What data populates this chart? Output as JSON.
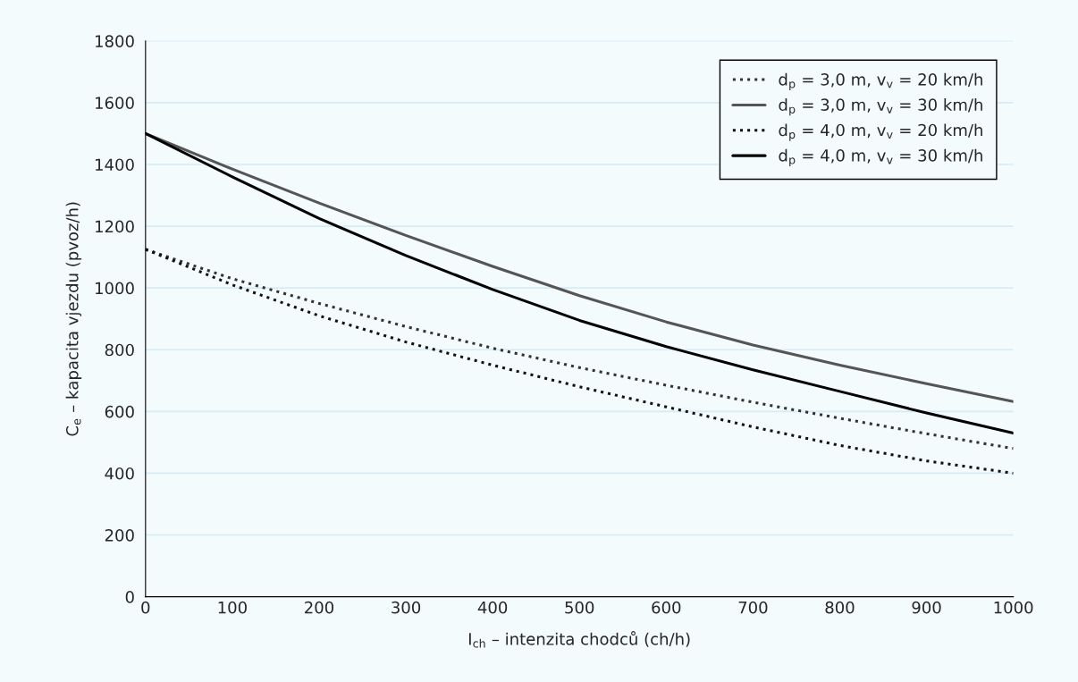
{
  "chart_data": {
    "type": "line",
    "xlabel": "I$_{ch}$ – intenzita chodců (ch/h)",
    "ylabel": "C$_{e}$ – kapacita vjezdu (pvoz/h)",
    "x": [
      0,
      100,
      200,
      300,
      400,
      500,
      600,
      700,
      800,
      900,
      1000
    ],
    "series": [
      {
        "name": "d$_{p}$ = 3,0 m, v$_{v}$ = 20 km/h",
        "color": "#333333",
        "line_style": "dotted",
        "values": [
          1125,
          1030,
          950,
          875,
          805,
          742,
          685,
          630,
          578,
          528,
          480
        ]
      },
      {
        "name": "d$_{p}$ = 3,0 m, v$_{v}$ = 30 km/h",
        "color": "#555555",
        "line_style": "solid",
        "values": [
          1500,
          1385,
          1275,
          1170,
          1070,
          975,
          890,
          815,
          750,
          690,
          632
        ]
      },
      {
        "name": "d$_{p}$ = 4,0 m, v$_{v}$ = 20 km/h",
        "color": "#111111",
        "line_style": "dotted",
        "values": [
          1125,
          1010,
          910,
          825,
          750,
          680,
          615,
          550,
          490,
          440,
          400
        ]
      },
      {
        "name": "d$_{p}$ = 4,0 m, v$_{v}$ = 30 km/h",
        "color": "#000000",
        "line_style": "solid",
        "values": [
          1500,
          1360,
          1225,
          1105,
          995,
          895,
          810,
          735,
          665,
          595,
          530
        ]
      }
    ],
    "xlim": [
      0,
      1000
    ],
    "xticks": [
      0,
      100,
      200,
      300,
      400,
      500,
      600,
      700,
      800,
      900,
      1000
    ],
    "ylim": [
      0,
      1800
    ],
    "yticks": [
      0,
      200,
      400,
      600,
      800,
      1000,
      1200,
      1400,
      1600,
      1800
    ],
    "grid": "y",
    "legend": "top right",
    "marker": "none"
  }
}
